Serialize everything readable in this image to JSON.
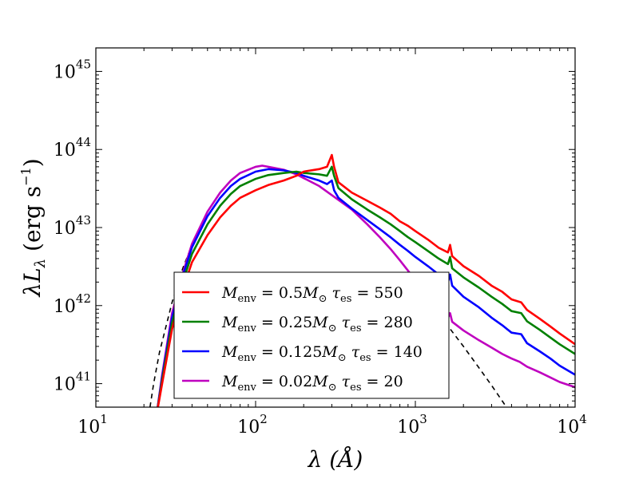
{
  "chart_data": {
    "type": "line",
    "xscale": "log",
    "yscale": "log",
    "xlim": [
      10,
      10000
    ],
    "ylim": [
      5e+40,
      2e+45
    ],
    "xlabel": "λ (Å)",
    "ylabel": "λL_λ  (erg s^-1)",
    "x_ticks": [
      {
        "value": 10,
        "base": "10",
        "exp": "1"
      },
      {
        "value": 100,
        "base": "10",
        "exp": "2"
      },
      {
        "value": 1000,
        "base": "10",
        "exp": "3"
      },
      {
        "value": 10000,
        "base": "10",
        "exp": "4"
      }
    ],
    "y_ticks": [
      {
        "value": 1e+41,
        "base": "10",
        "exp": "41"
      },
      {
        "value": 1e+42,
        "base": "10",
        "exp": "42"
      },
      {
        "value": 1e+43,
        "base": "10",
        "exp": "43"
      },
      {
        "value": 1e+44,
        "base": "10",
        "exp": "44"
      },
      {
        "value": 1e+45,
        "base": "10",
        "exp": "45"
      }
    ],
    "legend_position": "lower-left",
    "series": [
      {
        "name": "M_env = 0.5M_⊙  τ_es = 550",
        "label": {
          "m_sym": "M",
          "m_sub": "env",
          "m_val": " = 0.5",
          "m_unit": "M",
          "m_unit_sub": "⊙",
          "t_sym": "τ",
          "t_sub": "es",
          "t_val": " = 550"
        },
        "color": "#ff0000",
        "points": [
          [
            24,
            4e+40
          ],
          [
            26,
            1e+41
          ],
          [
            30,
            5e+41
          ],
          [
            35,
            1.6e+42
          ],
          [
            40,
            3.6e+42
          ],
          [
            50,
            8e+42
          ],
          [
            60,
            1.35e+43
          ],
          [
            70,
            1.9e+43
          ],
          [
            80,
            2.4e+43
          ],
          [
            100,
            3e+43
          ],
          [
            120,
            3.5e+43
          ],
          [
            150,
            4e+43
          ],
          [
            180,
            4.6e+43
          ],
          [
            200,
            5.2e+43
          ],
          [
            250,
            5.6e+43
          ],
          [
            280,
            6e+43
          ],
          [
            300,
            8.5e+43
          ],
          [
            310,
            6e+43
          ],
          [
            330,
            3.8e+43
          ],
          [
            400,
            2.8e+43
          ],
          [
            500,
            2.2e+43
          ],
          [
            600,
            1.8e+43
          ],
          [
            700,
            1.5e+43
          ],
          [
            800,
            1.2e+43
          ],
          [
            900,
            1.05e+43
          ],
          [
            1000,
            9e+42
          ],
          [
            1200,
            7e+42
          ],
          [
            1400,
            5.5e+42
          ],
          [
            1600,
            4.8e+42
          ],
          [
            1650,
            6e+42
          ],
          [
            1700,
            4.3e+42
          ],
          [
            2000,
            3.2e+42
          ],
          [
            2500,
            2.4e+42
          ],
          [
            3000,
            1.8e+42
          ],
          [
            3500,
            1.5e+42
          ],
          [
            4000,
            1.2e+42
          ],
          [
            4600,
            1.1e+42
          ],
          [
            5000,
            8.8e+41
          ],
          [
            6000,
            6.8e+41
          ],
          [
            7000,
            5.4e+41
          ],
          [
            8000,
            4.4e+41
          ],
          [
            10000,
            3.2e+41
          ]
        ]
      },
      {
        "name": "M_env = 0.25M_⊙  τ_es = 280",
        "label": {
          "m_sym": "M",
          "m_sub": "env",
          "m_val": " = 0.25",
          "m_unit": "M",
          "m_unit_sub": "⊙",
          "t_sym": "τ",
          "t_sub": "es",
          "t_val": " = 280"
        },
        "color": "#008000",
        "points": [
          [
            24,
            4e+40
          ],
          [
            26,
            1.1e+41
          ],
          [
            30,
            6e+41
          ],
          [
            35,
            2e+42
          ],
          [
            40,
            4.6e+42
          ],
          [
            50,
            1.1e+43
          ],
          [
            60,
            1.9e+43
          ],
          [
            70,
            2.7e+43
          ],
          [
            80,
            3.4e+43
          ],
          [
            100,
            4.2e+43
          ],
          [
            120,
            4.7e+43
          ],
          [
            150,
            5e+43
          ],
          [
            180,
            5.2e+43
          ],
          [
            200,
            5e+43
          ],
          [
            250,
            4.8e+43
          ],
          [
            280,
            4.6e+43
          ],
          [
            300,
            6e+43
          ],
          [
            310,
            4.6e+43
          ],
          [
            330,
            3.2e+43
          ],
          [
            400,
            2.3e+43
          ],
          [
            500,
            1.7e+43
          ],
          [
            600,
            1.35e+43
          ],
          [
            700,
            1.1e+43
          ],
          [
            800,
            9e+42
          ],
          [
            900,
            7.5e+42
          ],
          [
            1000,
            6.5e+42
          ],
          [
            1200,
            5e+42
          ],
          [
            1400,
            4e+42
          ],
          [
            1600,
            3.4e+42
          ],
          [
            1650,
            4.2e+42
          ],
          [
            1700,
            3e+42
          ],
          [
            2000,
            2.3e+42
          ],
          [
            2500,
            1.7e+42
          ],
          [
            3000,
            1.3e+42
          ],
          [
            3500,
            1.05e+42
          ],
          [
            4000,
            8.5e+41
          ],
          [
            4600,
            8e+41
          ],
          [
            5000,
            6.3e+41
          ],
          [
            6000,
            4.9e+41
          ],
          [
            7000,
            3.9e+41
          ],
          [
            8000,
            3.2e+41
          ],
          [
            10000,
            2.4e+41
          ]
        ]
      },
      {
        "name": "M_env = 0.125M_⊙  τ_es = 140",
        "label": {
          "m_sym": "M",
          "m_sub": "env",
          "m_val": " = 0.125",
          "m_unit": "M",
          "m_unit_sub": "⊙",
          "t_sym": "τ",
          "t_sub": "es",
          "t_val": " = 140"
        },
        "color": "#0000ff",
        "points": [
          [
            24,
            4e+40
          ],
          [
            26,
            1.2e+41
          ],
          [
            30,
            7e+41
          ],
          [
            35,
            2.4e+42
          ],
          [
            40,
            5.6e+42
          ],
          [
            50,
            1.4e+43
          ],
          [
            60,
            2.4e+43
          ],
          [
            70,
            3.4e+43
          ],
          [
            80,
            4.2e+43
          ],
          [
            100,
            5.2e+43
          ],
          [
            120,
            5.6e+43
          ],
          [
            150,
            5.4e+43
          ],
          [
            180,
            5e+43
          ],
          [
            200,
            4.6e+43
          ],
          [
            250,
            4e+43
          ],
          [
            280,
            3.6e+43
          ],
          [
            300,
            4e+43
          ],
          [
            310,
            3e+43
          ],
          [
            330,
            2.4e+43
          ],
          [
            400,
            1.75e+43
          ],
          [
            500,
            1.25e+43
          ],
          [
            600,
            9.5e+42
          ],
          [
            700,
            7.5e+42
          ],
          [
            800,
            6e+42
          ],
          [
            900,
            5e+42
          ],
          [
            1000,
            4.2e+42
          ],
          [
            1200,
            3.2e+42
          ],
          [
            1400,
            2.5e+42
          ],
          [
            1600,
            2e+42
          ],
          [
            1650,
            2.5e+42
          ],
          [
            1700,
            1.8e+42
          ],
          [
            2000,
            1.3e+42
          ],
          [
            2500,
            9.5e+41
          ],
          [
            3000,
            7e+41
          ],
          [
            3500,
            5.6e+41
          ],
          [
            4000,
            4.5e+41
          ],
          [
            4600,
            4.3e+41
          ],
          [
            5000,
            3.3e+41
          ],
          [
            6000,
            2.6e+41
          ],
          [
            7000,
            2.1e+41
          ],
          [
            8000,
            1.7e+41
          ],
          [
            10000,
            1.3e+41
          ]
        ]
      },
      {
        "name": "M_env = 0.02M_⊙  τ_es = 20",
        "label": {
          "m_sym": "M",
          "m_sub": "env",
          "m_val": " = 0.02",
          "m_unit": "M",
          "m_unit_sub": "⊙",
          "t_sym": "τ",
          "t_sub": "es",
          "t_val": " = 20"
        },
        "color": "#bf00bf",
        "points": [
          [
            24,
            4e+40
          ],
          [
            26,
            1.3e+41
          ],
          [
            30,
            8e+41
          ],
          [
            35,
            2.6e+42
          ],
          [
            40,
            6.2e+42
          ],
          [
            50,
            1.6e+43
          ],
          [
            60,
            2.8e+43
          ],
          [
            70,
            4e+43
          ],
          [
            80,
            5e+43
          ],
          [
            100,
            6e+43
          ],
          [
            110,
            6.2e+43
          ],
          [
            120,
            6e+43
          ],
          [
            150,
            5.5e+43
          ],
          [
            180,
            4.8e+43
          ],
          [
            200,
            4.3e+43
          ],
          [
            250,
            3.4e+43
          ],
          [
            300,
            2.6e+43
          ],
          [
            400,
            1.7e+43
          ],
          [
            500,
            1.1e+43
          ],
          [
            600,
            7.5e+42
          ],
          [
            700,
            5.3e+42
          ],
          [
            800,
            3.8e+42
          ],
          [
            900,
            2.8e+42
          ],
          [
            1000,
            2.1e+42
          ],
          [
            1200,
            1.3e+42
          ],
          [
            1400,
            9e+41
          ],
          [
            1600,
            7e+41
          ],
          [
            1650,
            8e+41
          ],
          [
            1700,
            6.2e+41
          ],
          [
            2000,
            4.8e+41
          ],
          [
            2500,
            3.6e+41
          ],
          [
            3000,
            2.9e+41
          ],
          [
            3500,
            2.4e+41
          ],
          [
            4000,
            2.1e+41
          ],
          [
            4500,
            1.9e+41
          ],
          [
            5000,
            1.65e+41
          ],
          [
            6000,
            1.4e+41
          ],
          [
            7000,
            1.2e+41
          ],
          [
            8000,
            1.05e+41
          ],
          [
            10000,
            9e+40
          ]
        ]
      }
    ],
    "reference_line": {
      "name": "blackbody (dashed)",
      "color": "#000000",
      "points": [
        [
          21,
          3e+40
        ],
        [
          23,
          1e+41
        ],
        [
          25,
          2.5e+41
        ],
        [
          30,
          1.1e+42
        ],
        [
          35,
          3e+42
        ],
        [
          40,
          6e+42
        ],
        [
          50,
          1.6e+43
        ],
        [
          60,
          2.8e+43
        ],
        [
          70,
          4e+43
        ],
        [
          80,
          5e+43
        ],
        [
          100,
          6e+43
        ],
        [
          110,
          6.2e+43
        ],
        [
          120,
          6e+43
        ],
        [
          150,
          5.5e+43
        ],
        [
          180,
          4.8e+43
        ],
        [
          200,
          4.3e+43
        ],
        [
          250,
          3.4e+43
        ],
        [
          300,
          2.6e+43
        ],
        [
          400,
          1.7e+43
        ],
        [
          500,
          1.1e+43
        ],
        [
          600,
          7.5e+42
        ],
        [
          700,
          5.3e+42
        ],
        [
          800,
          3.8e+42
        ],
        [
          900,
          2.8e+42
        ],
        [
          1000,
          2.1e+42
        ],
        [
          1200,
          1.2e+42
        ],
        [
          1500,
          6.5e+41
        ],
        [
          2000,
          3e+41
        ],
        [
          2500,
          1.6e+41
        ],
        [
          3000,
          9.5e+40
        ],
        [
          3500,
          6e+40
        ],
        [
          4000,
          4e+40
        ]
      ]
    }
  }
}
